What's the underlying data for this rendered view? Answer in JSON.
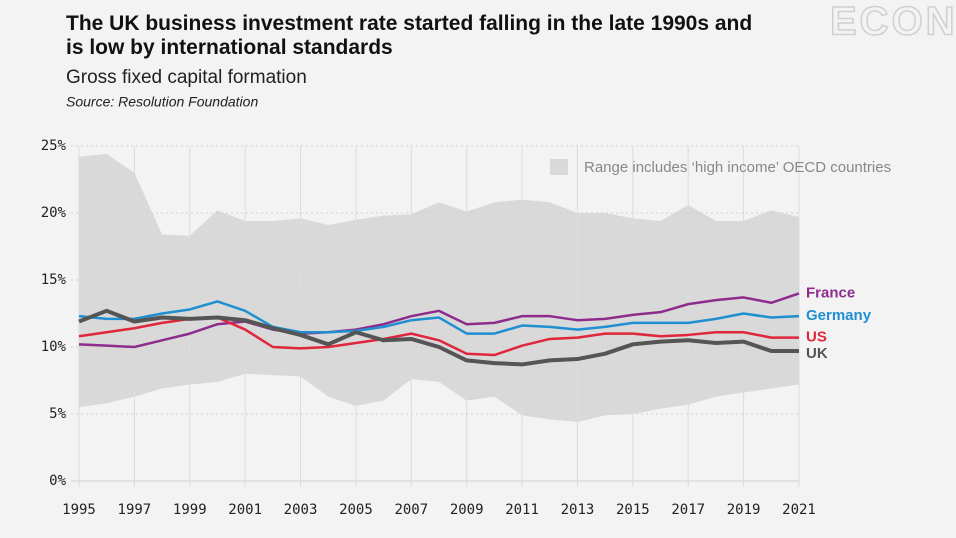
{
  "chart_data": {
    "type": "line",
    "title": "The UK business investment rate started falling in the late 1990s and is low by international standards",
    "subtitle": "Gross fixed capital formation",
    "source": "Source: Resolution Foundation",
    "watermark": "ECON",
    "x": [
      1995,
      1996,
      1997,
      1998,
      1999,
      2000,
      2001,
      2002,
      2003,
      2004,
      2005,
      2006,
      2007,
      2008,
      2009,
      2010,
      2011,
      2012,
      2013,
      2014,
      2015,
      2016,
      2017,
      2018,
      2019,
      2020,
      2021
    ],
    "band": {
      "name": "Range includes ‘high income’ OECD countries",
      "color": "#d9d9d9",
      "upper": [
        24.2,
        24.4,
        23.0,
        18.4,
        18.3,
        20.2,
        19.4,
        19.4,
        19.6,
        19.1,
        19.5,
        19.8,
        19.9,
        20.8,
        20.1,
        20.8,
        21.0,
        20.8,
        20.0,
        20.0,
        19.6,
        19.4,
        20.6,
        19.4,
        19.4,
        20.2,
        19.7
      ],
      "lower": [
        5.5,
        5.8,
        6.3,
        6.9,
        7.2,
        7.4,
        8.0,
        7.9,
        7.8,
        6.3,
        5.6,
        6.0,
        7.6,
        7.4,
        6.0,
        6.3,
        4.9,
        4.6,
        4.4,
        4.9,
        5.0,
        5.4,
        5.7,
        6.3,
        6.6,
        6.9,
        7.2
      ]
    },
    "series": [
      {
        "name": "France",
        "color": "#8e2c8e",
        "values": [
          10.2,
          10.1,
          10.0,
          10.5,
          11.0,
          11.7,
          11.9,
          11.3,
          11.0,
          11.1,
          11.3,
          11.7,
          12.3,
          12.7,
          11.7,
          11.8,
          12.3,
          12.3,
          12.0,
          12.1,
          12.4,
          12.6,
          13.2,
          13.5,
          13.7,
          13.3,
          14.0
        ]
      },
      {
        "name": "Germany",
        "color": "#1f8fd1",
        "values": [
          12.3,
          12.1,
          12.1,
          12.5,
          12.8,
          13.4,
          12.7,
          11.5,
          11.1,
          11.1,
          11.2,
          11.5,
          12.0,
          12.2,
          11.0,
          11.0,
          11.6,
          11.5,
          11.3,
          11.5,
          11.8,
          11.8,
          11.8,
          12.1,
          12.5,
          12.2,
          12.3
        ]
      },
      {
        "name": "US",
        "color": "#e0263a",
        "values": [
          10.8,
          11.1,
          11.4,
          11.8,
          12.1,
          12.2,
          11.3,
          10.0,
          9.9,
          10.0,
          10.3,
          10.6,
          11.0,
          10.5,
          9.5,
          9.4,
          10.1,
          10.6,
          10.7,
          11.0,
          11.0,
          10.8,
          10.9,
          11.1,
          11.1,
          10.7,
          10.7
        ]
      },
      {
        "name": "UK",
        "color": "#555555",
        "values": [
          11.9,
          12.7,
          11.9,
          12.2,
          12.1,
          12.2,
          12.0,
          11.4,
          10.9,
          10.2,
          11.1,
          10.5,
          10.6,
          10.0,
          9.0,
          8.8,
          8.7,
          9.0,
          9.1,
          9.5,
          10.2,
          10.4,
          10.5,
          10.3,
          10.4,
          9.7,
          9.7
        ]
      }
    ],
    "xlim": [
      1995,
      2021
    ],
    "xticks": [
      1995,
      1997,
      1999,
      2001,
      2003,
      2005,
      2007,
      2009,
      2011,
      2013,
      2015,
      2017,
      2019,
      2021
    ],
    "ylim": [
      0,
      25
    ],
    "yticks": [
      {
        "value": 0,
        "label": "0%"
      },
      {
        "value": 5,
        "label": "5%"
      },
      {
        "value": 10,
        "label": "10%"
      },
      {
        "value": 15,
        "label": "15%"
      },
      {
        "value": 20,
        "label": "20%"
      },
      {
        "value": 25,
        "label": "25%"
      }
    ],
    "grid": true
  }
}
